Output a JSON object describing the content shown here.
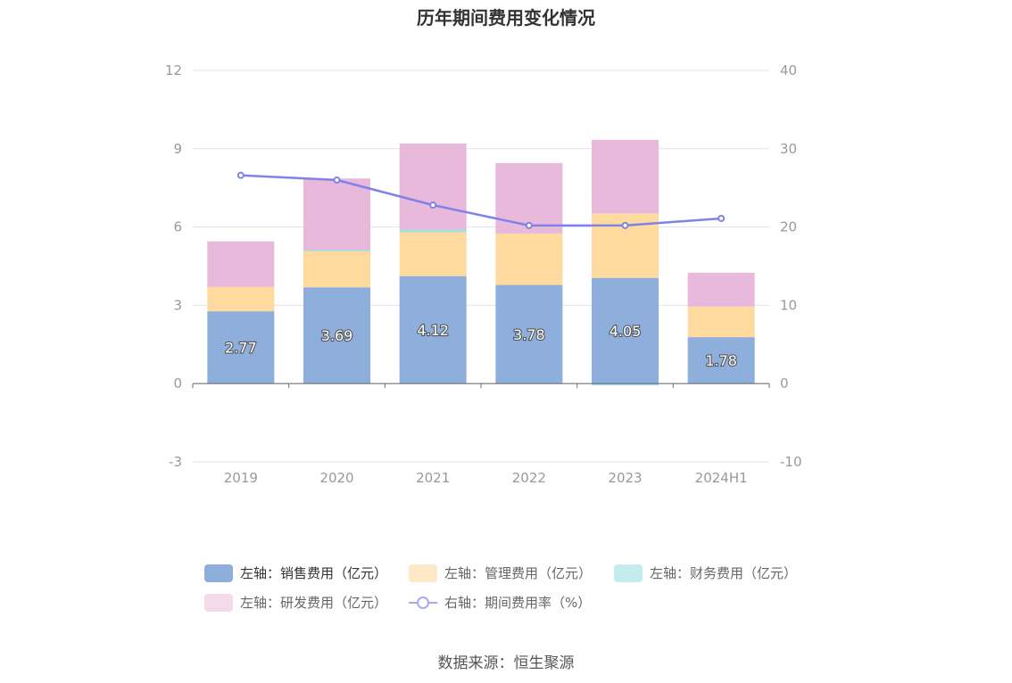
{
  "chart_data": {
    "type": "bar",
    "title": "历年期间费用变化情况",
    "categories": [
      "2019",
      "2020",
      "2021",
      "2022",
      "2023",
      "2024H1"
    ],
    "stacked": true,
    "left_axis": {
      "range": [
        -3,
        12
      ],
      "ticks": [
        -3,
        0,
        3,
        6,
        9,
        12
      ]
    },
    "right_axis": {
      "range": [
        -10,
        40
      ],
      "ticks": [
        -10,
        0,
        10,
        20,
        30,
        40
      ]
    },
    "grid": true,
    "legend_position": "bottom",
    "series": [
      {
        "name": "左轴：销售费用（亿元）",
        "axis": "left",
        "type": "bar",
        "color": "#8eaedb",
        "values": [
          2.77,
          3.69,
          4.12,
          3.78,
          4.05,
          1.78
        ],
        "labels": [
          "2.77",
          "3.69",
          "4.12",
          "3.78",
          "4.05",
          "1.78"
        ]
      },
      {
        "name": "左轴：管理费用（亿元）",
        "axis": "left",
        "type": "bar",
        "color": "#ffda9e",
        "values": [
          0.93,
          1.43,
          1.68,
          1.97,
          2.47,
          1.17
        ]
      },
      {
        "name": "左轴：财务费用（亿元）",
        "axis": "left",
        "type": "bar",
        "color": "#9edfe3",
        "values": [
          0.0,
          0.01,
          0.1,
          0.0,
          -0.07,
          0.0
        ]
      },
      {
        "name": "左轴：研发费用（亿元）",
        "axis": "left",
        "type": "bar",
        "color": "#e8b9da",
        "values": [
          1.75,
          2.73,
          3.3,
          2.7,
          2.82,
          1.3
        ]
      },
      {
        "name": "右轴：期间费用率（%）",
        "axis": "right",
        "type": "line",
        "color": "#7f82e8",
        "values": [
          26.6,
          26.0,
          22.8,
          20.2,
          20.2,
          21.1
        ]
      }
    ]
  },
  "source_text": "数据来源：恒生聚源"
}
